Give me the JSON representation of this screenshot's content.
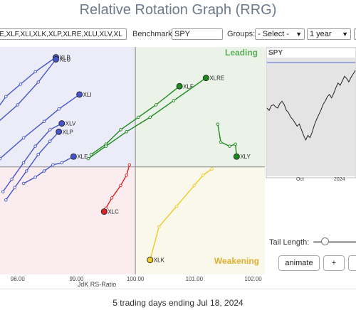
{
  "title": "Relative Rotation Graph (RRG)",
  "toolbar": {
    "symbols_value": "E,XLF,XLI,XLK,XLP,XLRE,XLU,XLV,XL",
    "benchmark_label": "Benchmark:",
    "benchmark_value": "SPY",
    "groups_label": "Groups:",
    "groups_value": "- Select -",
    "period_value": "1 year"
  },
  "quadrants": {
    "leading": "Leading",
    "weakening": "Weakening",
    "colors": {
      "improving": "#ececf9",
      "leading": "#ebf3e8",
      "weakening": "#faf7eb",
      "lagging": "#fbecef"
    }
  },
  "chart_data": {
    "type": "scatter",
    "xlabel": "JdK RS-Ratio",
    "x_ticks": [
      "98.00",
      "99.00",
      "100.00",
      "101.00",
      "102.00"
    ],
    "xlim": [
      97.7,
      102.2
    ],
    "ylim": [
      97.4,
      102.9
    ],
    "center": [
      100,
      100
    ],
    "series": [
      {
        "name": "XLB",
        "color": "#4455cc",
        "points": [
          [
            97.6,
            101.3
          ],
          [
            97.8,
            101.7
          ],
          [
            98.05,
            102.0
          ],
          [
            98.3,
            102.3
          ],
          [
            98.65,
            102.65
          ]
        ]
      },
      {
        "name": "XLU",
        "color": "#4455cc",
        "points": [
          [
            97.6,
            101.0
          ],
          [
            98.0,
            101.5
          ],
          [
            98.35,
            102.05
          ],
          [
            98.65,
            102.6
          ]
        ]
      },
      {
        "name": "XLI",
        "color": "#4455cc",
        "points": [
          [
            97.7,
            100.2
          ],
          [
            98.1,
            100.7
          ],
          [
            98.45,
            101.1
          ],
          [
            98.7,
            101.4
          ],
          [
            99.05,
            101.75
          ]
        ]
      },
      {
        "name": "XLV",
        "color": "#4455cc",
        "points": [
          [
            97.75,
            99.4
          ],
          [
            97.9,
            99.7
          ],
          [
            98.1,
            100.1
          ],
          [
            98.3,
            100.5
          ],
          [
            98.55,
            100.9
          ],
          [
            98.75,
            101.05
          ]
        ]
      },
      {
        "name": "XLP",
        "color": "#4455cc",
        "points": [
          [
            97.8,
            99.2
          ],
          [
            97.95,
            99.5
          ],
          [
            98.15,
            99.9
          ],
          [
            98.35,
            100.3
          ],
          [
            98.55,
            100.62
          ],
          [
            98.7,
            100.85
          ]
        ]
      },
      {
        "name": "XLE",
        "color": "#4455cc",
        "points": [
          [
            98.1,
            99.6
          ],
          [
            98.3,
            99.75
          ],
          [
            98.45,
            99.9
          ],
          [
            98.6,
            100.05
          ],
          [
            98.75,
            100.1
          ],
          [
            98.95,
            100.25
          ]
        ]
      },
      {
        "name": "XLF",
        "color": "#1a8a1a",
        "points": [
          [
            99.25,
            100.3
          ],
          [
            99.5,
            100.55
          ],
          [
            99.75,
            100.9
          ],
          [
            100.05,
            101.2
          ],
          [
            100.35,
            101.5
          ],
          [
            100.75,
            101.95
          ]
        ]
      },
      {
        "name": "XLRE",
        "color": "#1a8a1a",
        "points": [
          [
            99.2,
            100.2
          ],
          [
            99.5,
            100.5
          ],
          [
            99.85,
            100.85
          ],
          [
            100.25,
            101.2
          ],
          [
            100.65,
            101.6
          ],
          [
            101.2,
            102.15
          ]
        ]
      },
      {
        "name": "XLY",
        "color": "#1a8a1a",
        "points": [
          [
            101.4,
            101.03
          ],
          [
            101.45,
            100.6
          ],
          [
            101.6,
            100.5
          ],
          [
            101.7,
            100.55
          ],
          [
            101.72,
            100.25
          ]
        ]
      },
      {
        "name": "XLC",
        "color": "#dd2222",
        "points": [
          [
            99.9,
            100.05
          ],
          [
            99.85,
            99.8
          ],
          [
            99.75,
            99.55
          ],
          [
            99.6,
            99.25
          ],
          [
            99.5,
            99.0
          ],
          [
            99.47,
            98.92
          ]
        ]
      },
      {
        "name": "XLK",
        "color": "#eecc22",
        "points": [
          [
            101.3,
            99.95
          ],
          [
            101.15,
            99.8
          ],
          [
            101.0,
            99.55
          ],
          [
            100.7,
            99.05
          ],
          [
            100.4,
            98.55
          ],
          [
            100.25,
            97.75
          ]
        ]
      }
    ]
  },
  "price_panel": {
    "label": "SPY",
    "x_labels": [
      "Oct",
      "2024"
    ],
    "values": [
      0.6,
      0.58,
      0.62,
      0.63,
      0.61,
      0.6,
      0.64,
      0.66,
      0.63,
      0.58,
      0.56,
      0.52,
      0.5,
      0.47,
      0.44,
      0.46,
      0.41,
      0.36,
      0.32,
      0.36,
      0.34,
      0.39,
      0.45,
      0.5,
      0.54,
      0.58,
      0.63,
      0.66,
      0.7,
      0.72,
      0.69,
      0.73,
      0.78,
      0.82,
      0.8,
      0.84,
      0.88,
      0.86,
      0.83,
      0.87,
      0.9,
      0.93
    ]
  },
  "controls": {
    "tail_label": "Tail Length:",
    "tail_length": 0.25,
    "animate_label": "animate",
    "plus_label": "+"
  },
  "footer": "5 trading days ending Jul 18, 2024"
}
